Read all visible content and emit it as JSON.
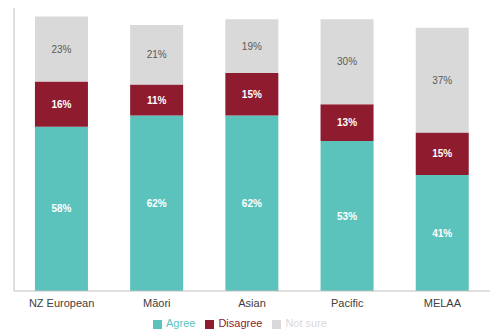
{
  "chart_data": {
    "type": "bar",
    "stacked": true,
    "categories": [
      "NZ European",
      "Māori",
      "Asian",
      "Pacific",
      "MELAA"
    ],
    "series": [
      {
        "name": "Agree",
        "color": "#5cc3bc",
        "values": [
          58,
          62,
          62,
          53,
          41
        ],
        "value_labels": [
          "58%",
          "62%",
          "62%",
          "53%",
          "41%"
        ]
      },
      {
        "name": "Disagree",
        "color": "#8e1b2e",
        "values": [
          16,
          11,
          15,
          13,
          15
        ],
        "value_labels": [
          "16%",
          "11%",
          "15%",
          "13%",
          "15%"
        ]
      },
      {
        "name": "Not sure",
        "color": "#d9d9d9",
        "values": [
          23,
          21,
          19,
          30,
          37
        ],
        "value_labels": [
          "23%",
          "21%",
          "19%",
          "30%",
          "37%"
        ]
      }
    ],
    "ylim": [
      0,
      100
    ],
    "data_labels": true,
    "legend": "bottom",
    "tick_labels": "x"
  }
}
